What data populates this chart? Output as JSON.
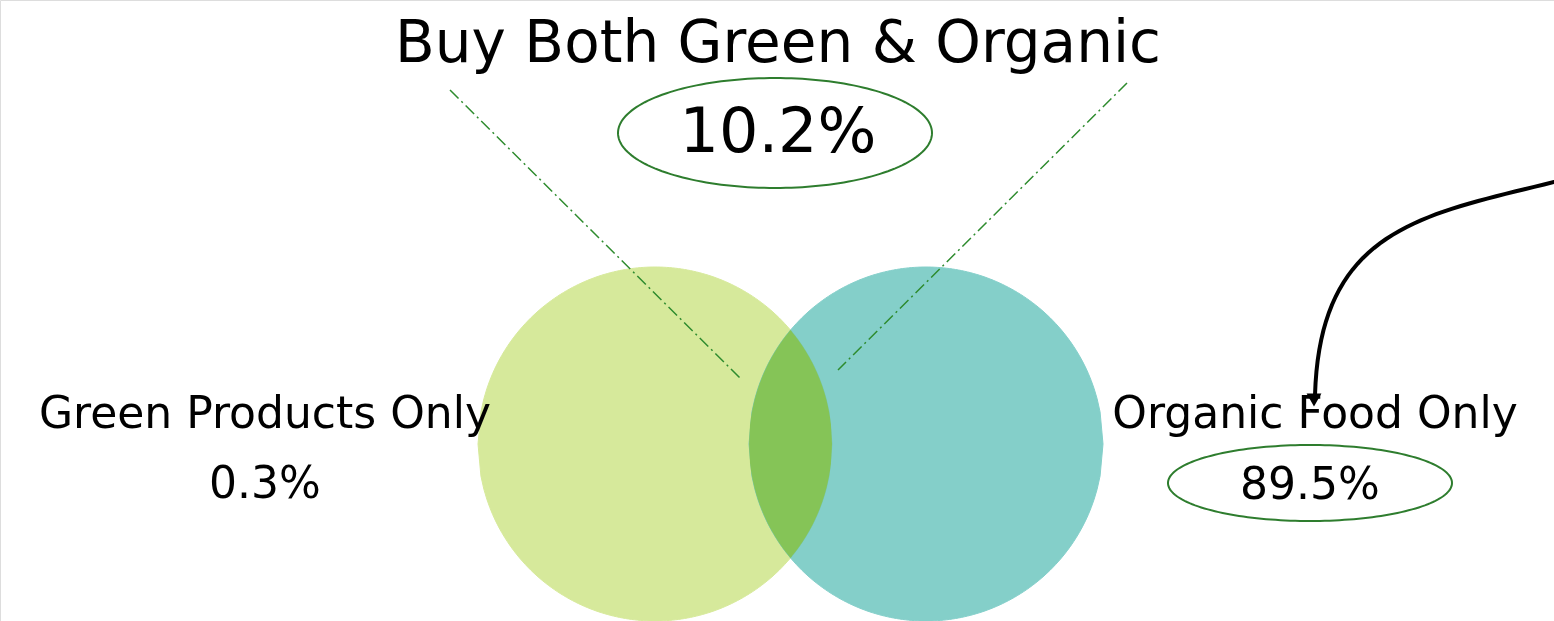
{
  "chart_data": {
    "type": "other",
    "categories": [
      "Green Products Only",
      "Buy Both Green & Organic",
      "Organic Food Only"
    ],
    "values": [
      0.3,
      10.2,
      89.5
    ],
    "value_labels": [
      "0.3%",
      "10.2%",
      "89.5%"
    ],
    "colors": [
      "#c9e27a",
      "#86c34e",
      "#5bbfb8"
    ]
  }
}
